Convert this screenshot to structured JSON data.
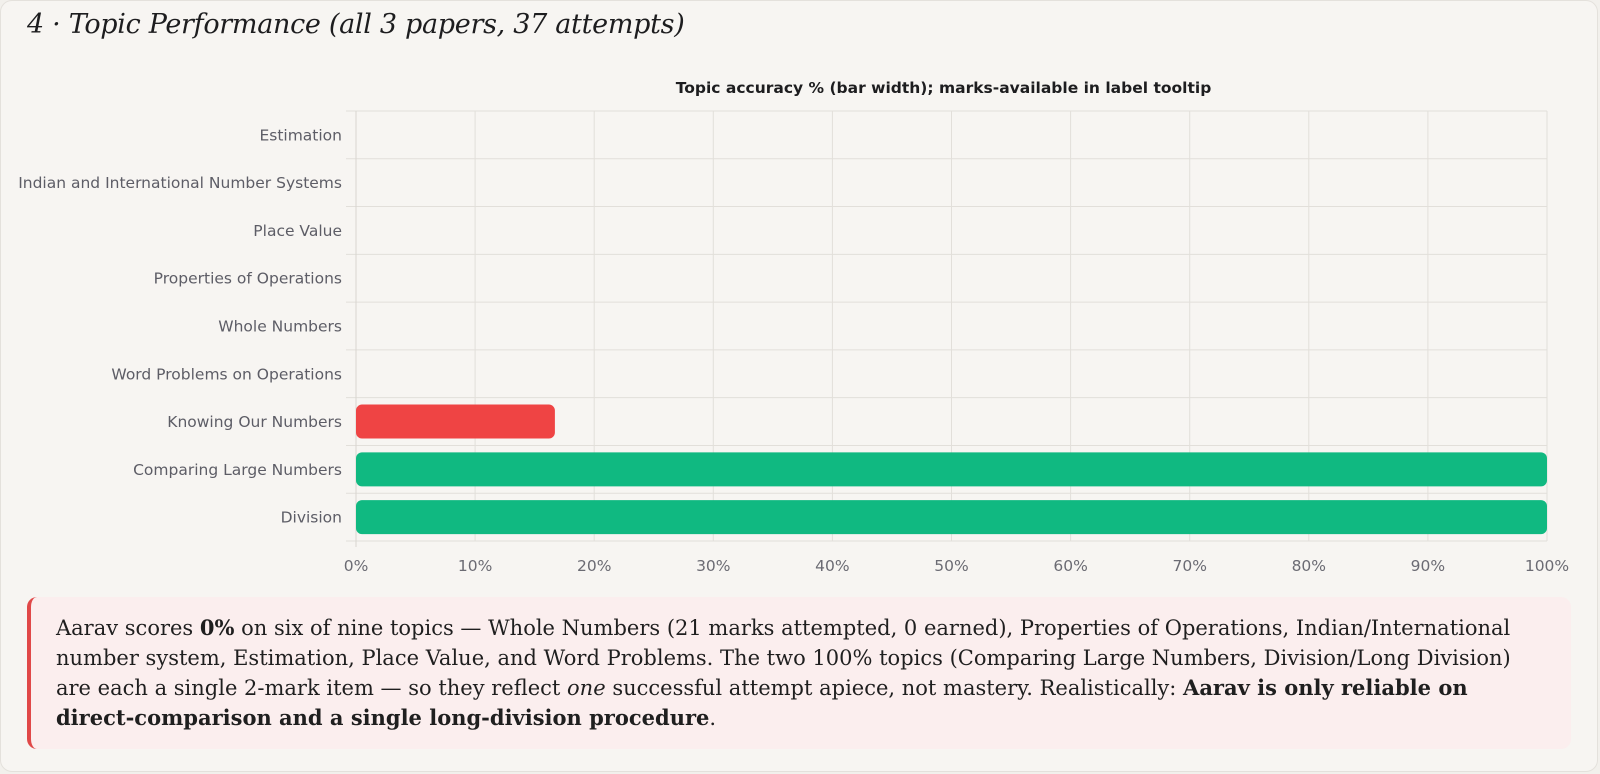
{
  "section": {
    "heading": "4 · Topic Performance (all 3 papers, 37 attempts)"
  },
  "chart_data": {
    "type": "bar",
    "orientation": "horizontal",
    "title": "Topic accuracy % (bar width); marks-available in label tooltip",
    "categories": [
      "Estimation",
      "Indian and International Number Systems",
      "Place Value",
      "Properties of Operations",
      "Whole Numbers",
      "Word Problems on Operations",
      "Knowing Our Numbers",
      "Comparing Large Numbers",
      "Division"
    ],
    "values": [
      0,
      0,
      0,
      0,
      0,
      0,
      16.7,
      100,
      100
    ],
    "bar_colors": [
      "#ef4444",
      "#ef4444",
      "#ef4444",
      "#ef4444",
      "#ef4444",
      "#ef4444",
      "#ef4444",
      "#10b981",
      "#10b981"
    ],
    "xlim": [
      0,
      100
    ],
    "x_ticks": [
      0,
      10,
      20,
      30,
      40,
      50,
      60,
      70,
      80,
      90,
      100
    ],
    "x_tick_format": "%",
    "grid": true,
    "legend": "none"
  },
  "callout": {
    "accent_color": "#e04848",
    "parts": [
      {
        "text": "Aarav scores ",
        "style": "normal"
      },
      {
        "text": "0%",
        "style": "bold"
      },
      {
        "text": " on six of nine topics — Whole Numbers (21 marks attempted, 0 earned), Properties of Operations, Indian/International number system, Estimation, Place Value, and Word Problems. The two 100% topics (Comparing Large Numbers, Division/Long Division) are each a single 2-mark item — so they reflect ",
        "style": "normal"
      },
      {
        "text": "one",
        "style": "italic"
      },
      {
        "text": " successful attempt apiece, not mastery. Realistically: ",
        "style": "normal"
      },
      {
        "text": "Aarav is only reliable on direct-comparison and a single long-division procedure",
        "style": "bold"
      },
      {
        "text": ".",
        "style": "normal"
      }
    ]
  }
}
